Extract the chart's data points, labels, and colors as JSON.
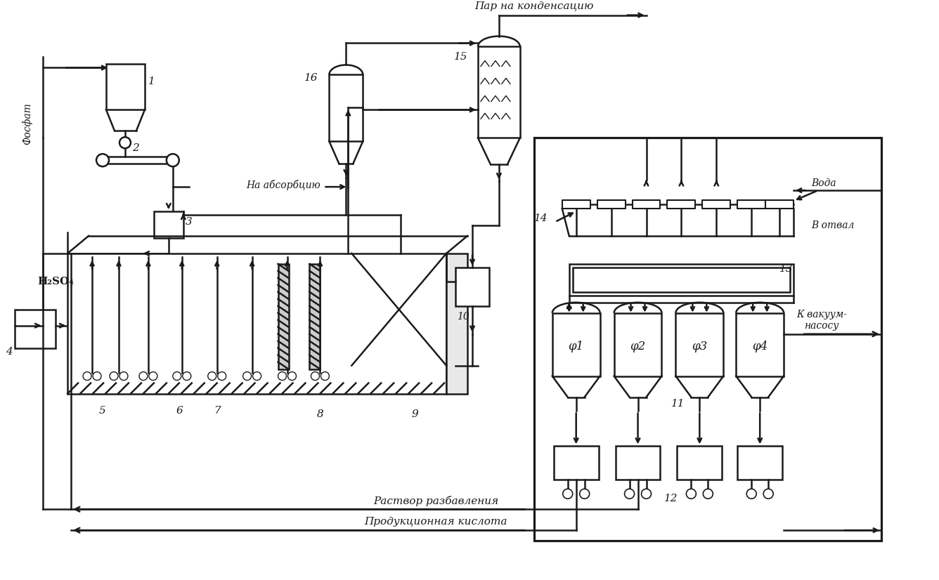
{
  "bg": "#ffffff",
  "lc": "#1a1a1a",
  "lw": 1.8,
  "texts": {
    "fosfat": "Фосфат",
    "h2so4": "H₂SO₄",
    "na_absorb": "На абсорбцию",
    "par": "Пар на конденсацию",
    "voda": "Вода",
    "votval": "В отвал",
    "kvakuum": "К вакуум-\nнасосу",
    "rastvr": "Раствор разбавления",
    "kislota": "Продукционная кислота",
    "phi1": "φ1",
    "phi2": "φ2",
    "phi3": "φ3",
    "phi4": "φ4",
    "n1": "1",
    "n2": "2",
    "n3": "3",
    "n4": "4",
    "n5": "5",
    "n6": "6",
    "n7": "7",
    "n8": "8",
    "n9": "9",
    "n10": "10",
    "n11": "11",
    "n12": "12",
    "n13": "13",
    "n14": "14",
    "n15": "15",
    "n16": "16"
  }
}
